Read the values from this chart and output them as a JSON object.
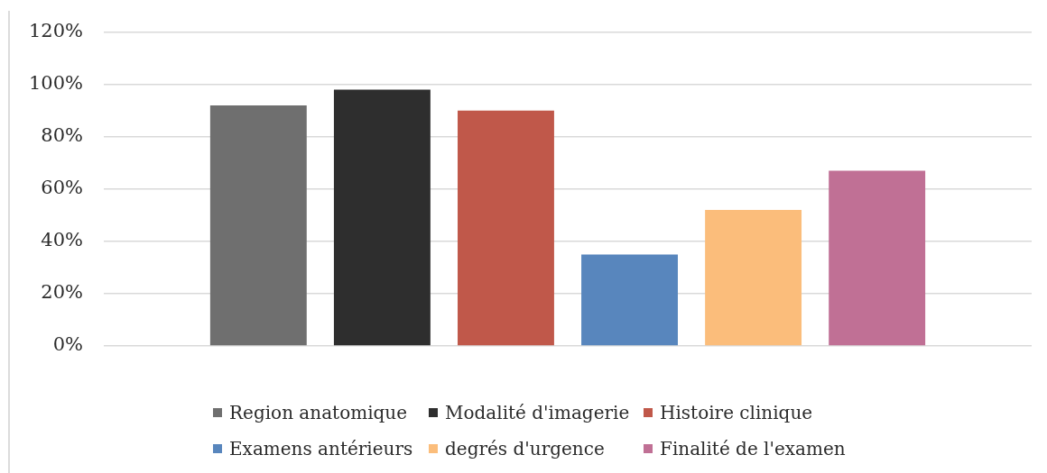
{
  "chart_data": {
    "type": "bar",
    "categories": [
      null
    ],
    "series": [
      {
        "name": "Region anatomique",
        "color": "#6f6f6f",
        "values": [
          92
        ]
      },
      {
        "name": "Modalité d'imagerie",
        "color": "#2e2e2e",
        "values": [
          98
        ]
      },
      {
        "name": "Histoire clinique",
        "color": "#c0584a",
        "values": [
          90
        ]
      },
      {
        "name": "Examens antérieurs",
        "color": "#5886bd",
        "values": [
          35
        ]
      },
      {
        "name": "degrés d'urgence",
        "color": "#fbbd7b",
        "values": [
          52
        ]
      },
      {
        "name": "Finalité de l'examen",
        "color": "#c07095",
        "values": [
          67
        ]
      }
    ],
    "ylim": [
      0,
      120
    ],
    "yticks": [
      {
        "value": 0,
        "label": "0%"
      },
      {
        "value": 20,
        "label": "20%"
      },
      {
        "value": 40,
        "label": "40%"
      },
      {
        "value": 60,
        "label": "60%"
      },
      {
        "value": 80,
        "label": "80%"
      },
      {
        "value": 100,
        "label": "100%"
      },
      {
        "value": 120,
        "label": "120%"
      }
    ],
    "grid": "y",
    "legend": "bottom"
  }
}
